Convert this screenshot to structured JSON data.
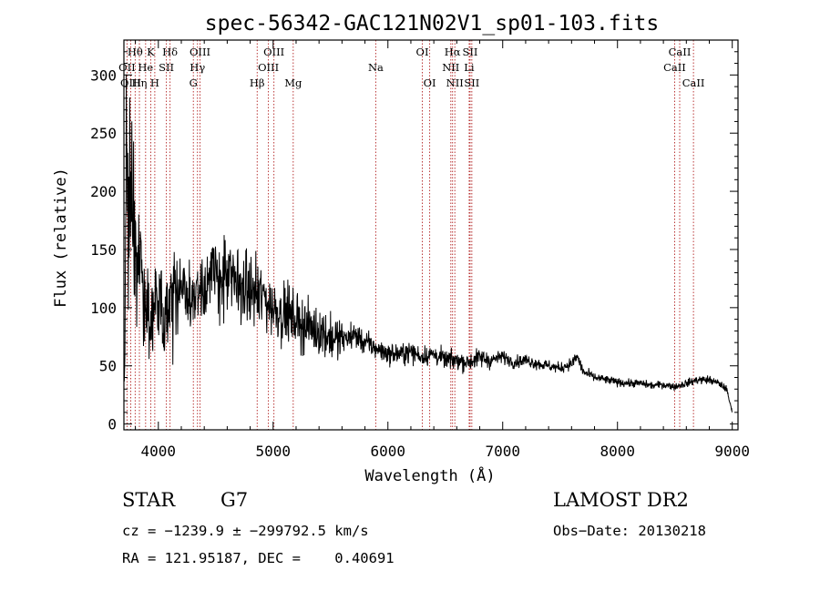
{
  "chart_data": {
    "type": "line",
    "title": "spec-56342-GAC121N02V1_sp01-103.fits",
    "xlabel": "Wavelength (Å)",
    "ylabel": "Flux (relative)",
    "xlim": [
      3700,
      9050
    ],
    "ylim": [
      -5,
      330
    ],
    "xticks": [
      "4000",
      "5000",
      "6000",
      "7000",
      "8000",
      "9000"
    ],
    "yticks": [
      "0",
      "50",
      "100",
      "150",
      "200",
      "250",
      "300"
    ],
    "line_color": "#000000",
    "marker_color": "#b22222",
    "continuum": {
      "x": [
        3700,
        3720,
        3760,
        3800,
        3850,
        3900,
        3950,
        4000,
        4050,
        4100,
        4200,
        4300,
        4400,
        4500,
        4600,
        4700,
        4800,
        4900,
        5000,
        5100,
        5200,
        5300,
        5400,
        5500,
        5600,
        5700,
        5800,
        5900,
        6000,
        6100,
        6200,
        6300,
        6400,
        6500,
        6600,
        6700,
        6800,
        6900,
        7000,
        7100,
        7200,
        7300,
        7400,
        7500,
        7600,
        7650,
        7700,
        7800,
        7900,
        8000,
        8100,
        8200,
        8300,
        8400,
        8500,
        8600,
        8700,
        8800,
        8900,
        8950,
        9000
      ],
      "y": [
        50,
        205,
        190,
        150,
        125,
        100,
        90,
        105,
        98,
        105,
        112,
        110,
        122,
        128,
        125,
        120,
        115,
        110,
        100,
        95,
        90,
        83,
        80,
        75,
        72,
        77,
        70,
        65,
        60,
        60,
        62,
        58,
        60,
        55,
        55,
        53,
        57,
        55,
        58,
        53,
        55,
        52,
        50,
        48,
        52,
        58,
        45,
        40,
        38,
        36,
        35,
        35,
        33,
        34,
        32,
        35,
        38,
        38,
        34,
        30,
        10
      ]
    },
    "spectral_lines": [
      {
        "name": "Hθ",
        "wavelength": 3798,
        "row": 1
      },
      {
        "name": "OII",
        "wavelength": 3727,
        "row": 2
      },
      {
        "name": "OIII",
        "wavelength": 3760,
        "row": 3
      },
      {
        "name": "K",
        "wavelength": 3934,
        "row": 1
      },
      {
        "name": "He",
        "wavelength": 3889,
        "row": 2
      },
      {
        "name": "Hη",
        "wavelength": 3835,
        "row": 3
      },
      {
        "name": "H",
        "wavelength": 3969,
        "row": 3
      },
      {
        "name": "SII",
        "wavelength": 4070,
        "row": 2
      },
      {
        "name": "Hδ",
        "wavelength": 4102,
        "row": 1
      },
      {
        "name": "OIII",
        "wavelength": 4363,
        "row": 1
      },
      {
        "name": "Hγ",
        "wavelength": 4341,
        "row": 2
      },
      {
        "name": "G",
        "wavelength": 4305,
        "row": 3
      },
      {
        "name": "OIII",
        "wavelength": 5007,
        "row": 1
      },
      {
        "name": "OIII",
        "wavelength": 4959,
        "row": 2
      },
      {
        "name": "Hβ",
        "wavelength": 4861,
        "row": 3
      },
      {
        "name": "Mg",
        "wavelength": 5175,
        "row": 3
      },
      {
        "name": "Na",
        "wavelength": 5894,
        "row": 2
      },
      {
        "name": "OI",
        "wavelength": 6300,
        "row": 1
      },
      {
        "name": "OI",
        "wavelength": 6364,
        "row": 3
      },
      {
        "name": "Hα",
        "wavelength": 6563,
        "row": 1
      },
      {
        "name": "SII",
        "wavelength": 6716,
        "row": 1
      },
      {
        "name": "NII",
        "wavelength": 6548,
        "row": 2
      },
      {
        "name": "Li",
        "wavelength": 6708,
        "row": 2
      },
      {
        "name": "NII",
        "wavelength": 6583,
        "row": 3
      },
      {
        "name": "SII",
        "wavelength": 6731,
        "row": 3
      },
      {
        "name": "CaII",
        "wavelength": 8542,
        "row": 1
      },
      {
        "name": "CaII",
        "wavelength": 8498,
        "row": 2
      },
      {
        "name": "CaII",
        "wavelength": 8662,
        "row": 3
      }
    ]
  },
  "info": {
    "object_class": "STAR",
    "subclass": "G7",
    "survey": "LAMOST DR2",
    "cz": "cz = −1239.9 ± −299792.5 km/s",
    "obs_date": "Obs−Date: 20130218",
    "radec": "RA = 121.95187, DEC =    0.40691"
  }
}
